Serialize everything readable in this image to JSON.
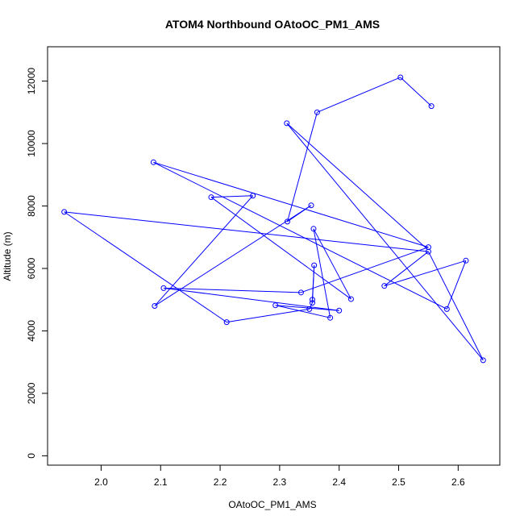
{
  "chart_data": {
    "type": "line",
    "title": "ATOM4 Northbound OAtoOC_PM1_AMS",
    "xlabel": "OAtoOC_PM1_AMS",
    "ylabel": "Altitude (m)",
    "xlim": [
      1.91,
      2.67
    ],
    "ylim": [
      -300,
      13100
    ],
    "xticks": [
      2.0,
      2.1,
      2.2,
      2.3,
      2.4,
      2.5,
      2.6
    ],
    "xtick_labels": [
      "2.0",
      "2.1",
      "2.2",
      "2.3",
      "2.4",
      "2.5",
      "2.6"
    ],
    "yticks": [
      0,
      2000,
      4000,
      6000,
      8000,
      10000,
      12000
    ],
    "ytick_labels": [
      "0",
      "2000",
      "4000",
      "6000",
      "8000",
      "10000",
      "12000"
    ],
    "grid": false,
    "legend": "none",
    "series": [
      {
        "color": "#0000ff",
        "marker": "open-circle",
        "points": [
          {
            "x": 2.555,
            "y": 11200
          },
          {
            "x": 2.503,
            "y": 12120
          },
          {
            "x": 2.363,
            "y": 11000
          },
          {
            "x": 2.313,
            "y": 7500
          },
          {
            "x": 2.353,
            "y": 8020
          },
          {
            "x": 2.09,
            "y": 4800
          },
          {
            "x": 2.255,
            "y": 8330
          },
          {
            "x": 2.185,
            "y": 8280
          },
          {
            "x": 2.42,
            "y": 5020
          },
          {
            "x": 2.357,
            "y": 7270
          },
          {
            "x": 2.385,
            "y": 4420
          },
          {
            "x": 2.293,
            "y": 4820
          },
          {
            "x": 2.4,
            "y": 4650
          },
          {
            "x": 2.105,
            "y": 5370
          },
          {
            "x": 2.336,
            "y": 5230
          },
          {
            "x": 2.55,
            "y": 6680
          },
          {
            "x": 2.088,
            "y": 9400
          },
          {
            "x": 2.581,
            "y": 4700
          },
          {
            "x": 2.613,
            "y": 6250
          },
          {
            "x": 2.476,
            "y": 5440
          },
          {
            "x": 2.55,
            "y": 6540
          },
          {
            "x": 1.938,
            "y": 7810
          },
          {
            "x": 2.211,
            "y": 4280
          },
          {
            "x": 2.35,
            "y": 4700
          },
          {
            "x": 2.355,
            "y": 4900
          },
          {
            "x": 2.358,
            "y": 6100
          },
          {
            "x": 2.355,
            "y": 5000
          }
        ],
        "extra_points": [
          {
            "x": 2.312,
            "y": 10650
          },
          {
            "x": 2.642,
            "y": 3060
          }
        ]
      }
    ]
  }
}
